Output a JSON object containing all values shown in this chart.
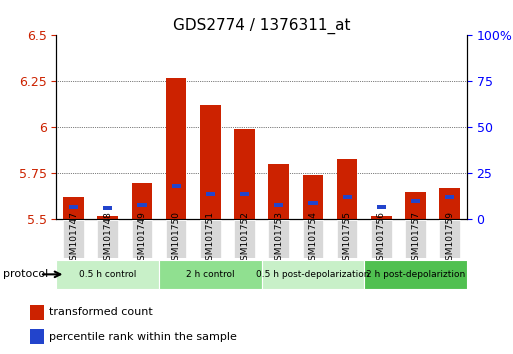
{
  "title": "GDS2774 / 1376311_at",
  "categories": [
    "GSM101747",
    "GSM101748",
    "GSM101749",
    "GSM101750",
    "GSM101751",
    "GSM101752",
    "GSM101753",
    "GSM101754",
    "GSM101755",
    "GSM101756",
    "GSM101757",
    "GSM101759"
  ],
  "red_values": [
    5.62,
    5.52,
    5.7,
    6.27,
    6.12,
    5.99,
    5.8,
    5.74,
    5.83,
    5.52,
    5.65,
    5.67
  ],
  "blue_values": [
    5.57,
    5.56,
    5.58,
    5.68,
    5.64,
    5.64,
    5.58,
    5.59,
    5.62,
    5.57,
    5.6,
    5.62
  ],
  "ylim_left": [
    5.5,
    6.5
  ],
  "ylim_right": [
    0,
    100
  ],
  "yticks_left": [
    5.5,
    5.75,
    6.0,
    6.25,
    6.5
  ],
  "ytick_labels_left": [
    "5.5",
    "5.75",
    "6",
    "6.25",
    "6.5"
  ],
  "yticks_right": [
    0,
    25,
    50,
    75,
    100
  ],
  "ytick_labels_right": [
    "0",
    "25",
    "50",
    "75",
    "100%"
  ],
  "groups": [
    {
      "label": "0.5 h control",
      "start": 0,
      "end": 3,
      "color": "#c8f0c8"
    },
    {
      "label": "2 h control",
      "start": 3,
      "end": 6,
      "color": "#90e090"
    },
    {
      "label": "0.5 h post-depolarization",
      "start": 6,
      "end": 9,
      "color": "#c8f0c8"
    },
    {
      "label": "2 h post-depolariztion",
      "start": 9,
      "end": 12,
      "color": "#50c050"
    }
  ],
  "bar_width": 0.6,
  "red_color": "#cc2200",
  "blue_color": "#2244cc",
  "tick_label_bg": "#d8d8d8",
  "protocol_label": "protocol",
  "legend_red": "transformed count",
  "legend_blue": "percentile rank within the sample",
  "title_fontsize": 11,
  "axis_fontsize": 9,
  "label_fontsize": 8
}
